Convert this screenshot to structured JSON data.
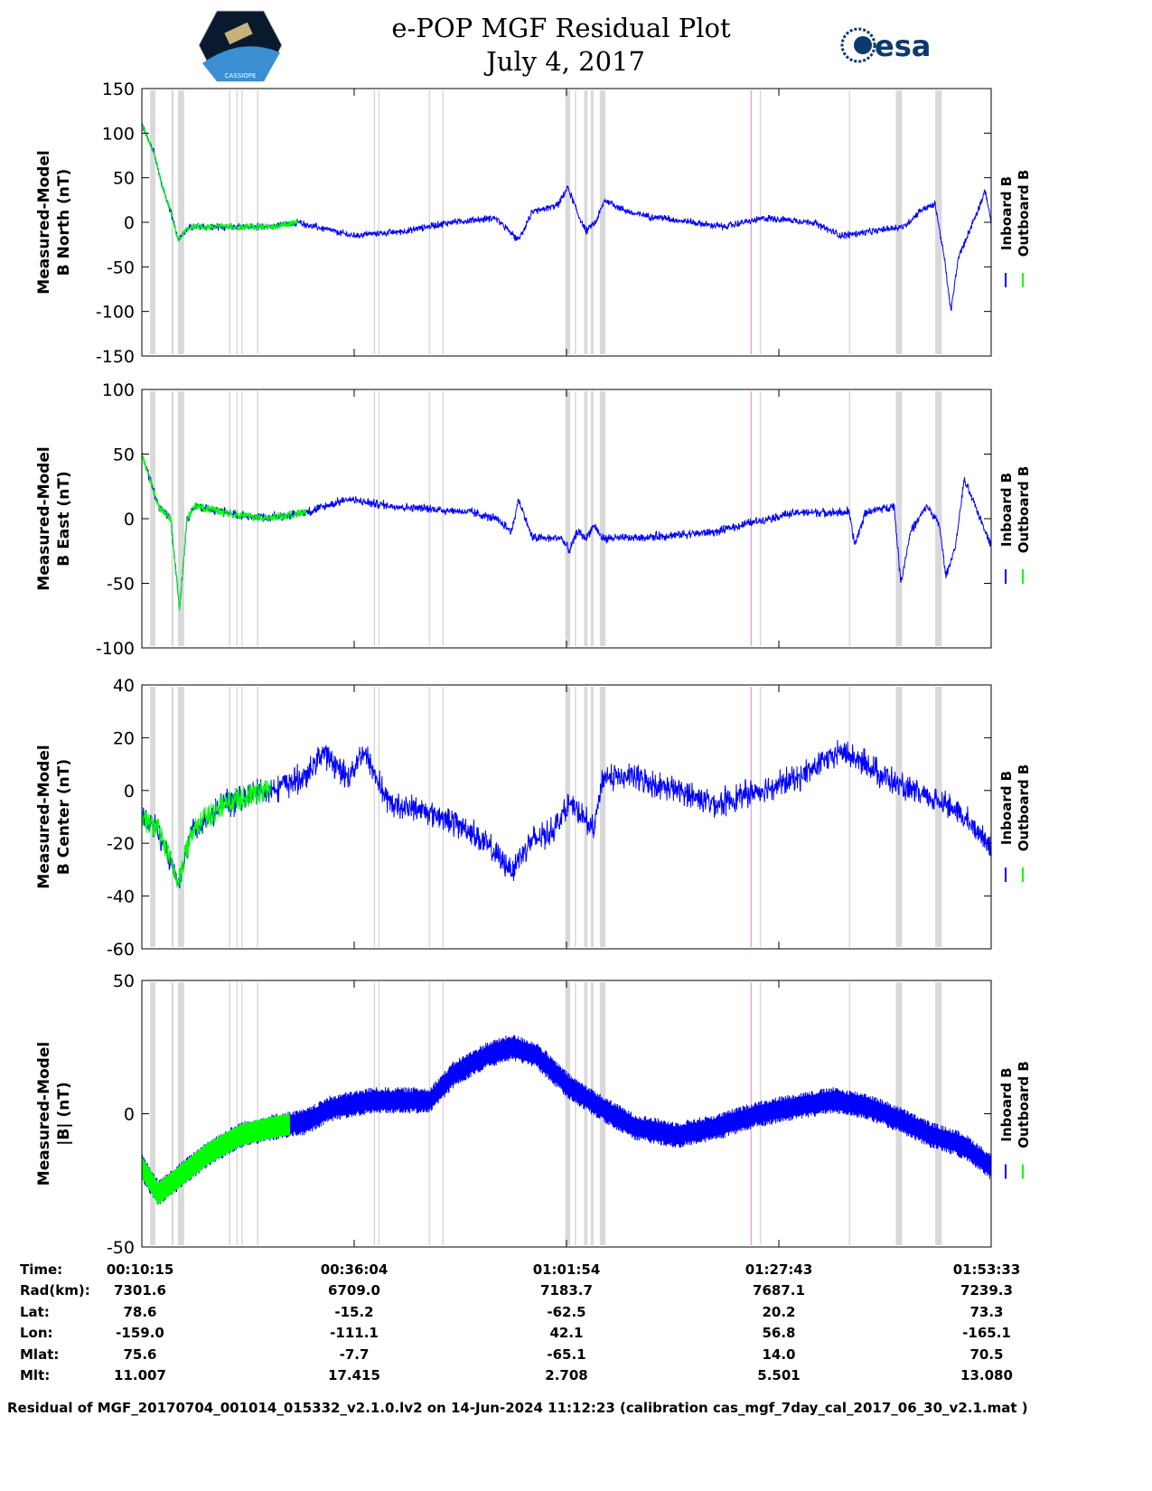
{
  "header": {
    "title": "e-POP MGF Residual Plot",
    "date": "July 4, 2017",
    "left_logo_text": "CASSIOPE",
    "right_logo_text": "esa"
  },
  "colors": {
    "inboard": "#0000ff",
    "outboard": "#00ff00",
    "gap": "#d9d9d9",
    "marker": "#e080e0"
  },
  "legend": {
    "inboard": "Inboard B",
    "outboard": "Outboard B"
  },
  "chart_data": {
    "type": "line",
    "x_unit": "minutes since 00:10:15",
    "xlim": [
      0,
      103.3
    ],
    "gaps": [
      [
        1.0,
        1.65
      ],
      [
        3.6,
        3.85
      ],
      [
        4.4,
        5.15
      ],
      [
        10.6,
        10.75
      ],
      [
        11.5,
        11.65
      ],
      [
        12.1,
        12.25
      ],
      [
        14.0,
        14.15
      ],
      [
        28.2,
        28.35
      ],
      [
        28.75,
        28.9
      ],
      [
        34.9,
        35.05
      ],
      [
        36.55,
        36.7
      ],
      [
        51.5,
        52.1
      ],
      [
        52.65,
        52.8
      ],
      [
        53.8,
        54.2
      ],
      [
        54.6,
        54.95
      ],
      [
        55.7,
        56.4
      ],
      [
        75.15,
        75.3
      ],
      [
        86.0,
        86.15
      ],
      [
        91.7,
        92.45
      ],
      [
        96.5,
        97.3
      ]
    ],
    "marker_line": 74.1,
    "panels": [
      {
        "ylabel1": "Measured-Model",
        "ylabel2": "B North (nT)",
        "ylim": [
          -150,
          150
        ],
        "yticks": [
          150,
          100,
          50,
          0,
          -50,
          -100,
          -150
        ],
        "noise": 7,
        "outboard_until": 19,
        "trend": [
          [
            0,
            110
          ],
          [
            1.4,
            80
          ],
          [
            2.5,
            40
          ],
          [
            3.6,
            10
          ],
          [
            4.4,
            -20
          ],
          [
            5.8,
            -5
          ],
          [
            10.2,
            -5
          ],
          [
            15.7,
            -5
          ],
          [
            19,
            0
          ],
          [
            25.5,
            -15
          ],
          [
            32,
            -10
          ],
          [
            37.5,
            0
          ],
          [
            43,
            5
          ],
          [
            45.8,
            -20
          ],
          [
            47.4,
            10
          ],
          [
            50.7,
            20
          ],
          [
            51.8,
            40
          ],
          [
            53,
            10
          ],
          [
            54,
            -10
          ],
          [
            55.2,
            0
          ],
          [
            56.3,
            25
          ],
          [
            59.6,
            10
          ],
          [
            70.6,
            -5
          ],
          [
            76.1,
            5
          ],
          [
            81.6,
            0
          ],
          [
            85,
            -15
          ],
          [
            92.7,
            -5
          ],
          [
            94.9,
            15
          ],
          [
            96.5,
            20
          ],
          [
            97.6,
            -40
          ],
          [
            98.4,
            -100
          ],
          [
            99.3,
            -40
          ],
          [
            101.5,
            10
          ],
          [
            102.6,
            35
          ],
          [
            103.3,
            0
          ]
        ]
      },
      {
        "ylabel1": "Measured-Model",
        "ylabel2": "B East (nT)",
        "ylim": [
          -100,
          100
        ],
        "yticks": [
          100,
          50,
          0,
          -50,
          -100
        ],
        "noise": 6,
        "outboard_until": 20,
        "trend": [
          [
            0,
            50
          ],
          [
            1,
            30
          ],
          [
            2,
            10
          ],
          [
            3.5,
            0
          ],
          [
            4.6,
            -70
          ],
          [
            5.5,
            0
          ],
          [
            6.5,
            10
          ],
          [
            10,
            5
          ],
          [
            15,
            0
          ],
          [
            20,
            5
          ],
          [
            25,
            15
          ],
          [
            30,
            10
          ],
          [
            40,
            5
          ],
          [
            43,
            0
          ],
          [
            45,
            -10
          ],
          [
            45.8,
            15
          ],
          [
            47.5,
            -15
          ],
          [
            51,
            -15
          ],
          [
            52,
            -25
          ],
          [
            53,
            -10
          ],
          [
            54,
            -15
          ],
          [
            55,
            -5
          ],
          [
            56,
            -15
          ],
          [
            60,
            -15
          ],
          [
            70,
            -10
          ],
          [
            76,
            0
          ],
          [
            80,
            5
          ],
          [
            86,
            5
          ],
          [
            86.7,
            -20
          ],
          [
            88,
            5
          ],
          [
            91.5,
            10
          ],
          [
            92.3,
            -50
          ],
          [
            93.5,
            -10
          ],
          [
            95.5,
            10
          ],
          [
            97,
            -5
          ],
          [
            97.8,
            -45
          ],
          [
            99,
            -20
          ],
          [
            100,
            30
          ],
          [
            102,
            0
          ],
          [
            103.3,
            -20
          ]
        ]
      },
      {
        "ylabel1": "Measured-Model",
        "ylabel2": "B Center (nT)",
        "ylim": [
          -60,
          40
        ],
        "yticks": [
          40,
          20,
          0,
          -20,
          -40,
          -60
        ],
        "noise": 9,
        "outboard_until": 15.7,
        "trend": [
          [
            0,
            -10
          ],
          [
            2,
            -15
          ],
          [
            4.5,
            -35
          ],
          [
            6,
            -15
          ],
          [
            10,
            -5
          ],
          [
            15,
            0
          ],
          [
            20,
            5
          ],
          [
            22,
            15
          ],
          [
            25,
            5
          ],
          [
            27,
            15
          ],
          [
            30,
            -5
          ],
          [
            35,
            -8
          ],
          [
            40,
            -15
          ],
          [
            45,
            -30
          ],
          [
            47,
            -20
          ],
          [
            50,
            -15
          ],
          [
            52,
            -5
          ],
          [
            55,
            -15
          ],
          [
            56,
            5
          ],
          [
            60,
            5
          ],
          [
            65,
            0
          ],
          [
            70,
            -5
          ],
          [
            75,
            0
          ],
          [
            80,
            5
          ],
          [
            85,
            15
          ],
          [
            88,
            10
          ],
          [
            93,
            0
          ],
          [
            98,
            -5
          ],
          [
            103.3,
            -20
          ]
        ]
      },
      {
        "ylabel1": "Measured-Model",
        "ylabel2": "|B| (nT)",
        "ylim": [
          -50,
          50
        ],
        "yticks": [
          50,
          0,
          -50
        ],
        "noise": 10,
        "outboard_until": 18,
        "trend": [
          [
            0,
            -20
          ],
          [
            2,
            -30
          ],
          [
            4,
            -25
          ],
          [
            8,
            -15
          ],
          [
            12,
            -8
          ],
          [
            16,
            -5
          ],
          [
            20,
            -3
          ],
          [
            23,
            2
          ],
          [
            28,
            5
          ],
          [
            32,
            5
          ],
          [
            35,
            5
          ],
          [
            38,
            15
          ],
          [
            42,
            22
          ],
          [
            45,
            25
          ],
          [
            48,
            22
          ],
          [
            52,
            10
          ],
          [
            56,
            2
          ],
          [
            60,
            -5
          ],
          [
            65,
            -8
          ],
          [
            70,
            -5
          ],
          [
            75,
            0
          ],
          [
            80,
            3
          ],
          [
            84,
            5
          ],
          [
            88,
            3
          ],
          [
            92,
            -2
          ],
          [
            96,
            -8
          ],
          [
            100,
            -12
          ],
          [
            103.3,
            -20
          ]
        ]
      }
    ]
  },
  "table": {
    "row_labels": [
      "Time:",
      "Rad(km):",
      "Lat:",
      "Lon:",
      "Mlat:",
      "Mlt:"
    ],
    "columns": [
      [
        "00:10:15",
        "7301.6",
        "78.6",
        "-159.0",
        "75.6",
        "11.007"
      ],
      [
        "00:36:04",
        "6709.0",
        "-15.2",
        "-111.1",
        "-7.7",
        "17.415"
      ],
      [
        "01:01:54",
        "7183.7",
        "-62.5",
        "42.1",
        "-65.1",
        "2.708"
      ],
      [
        "01:27:43",
        "7687.1",
        "20.2",
        "56.8",
        "14.0",
        "5.501"
      ],
      [
        "01:53:33",
        "7239.3",
        "73.3",
        "-165.1",
        "70.5",
        "13.080"
      ]
    ]
  },
  "footer": "Residual of MGF_20170704_001014_015332_v2.1.0.lv2 on 14-Jun-2024 11:12:23 (calibration cas_mgf_7day_cal_2017_06_30_v2.1.mat )"
}
